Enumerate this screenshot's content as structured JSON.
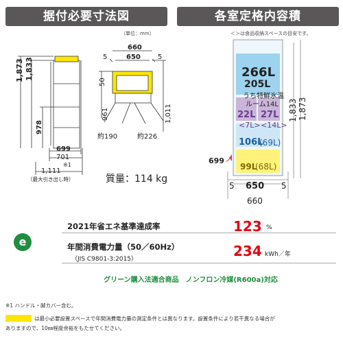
{
  "headers": {
    "left": "据付必要寸法図",
    "right": "各室定格内容積"
  },
  "units_note": "（単位：mm）",
  "food_note": "＜＞は食品収納スペースの目安です。",
  "side_view": {
    "height_total": "1,873",
    "height_body": "1,833",
    "height_978": "978",
    "depth_699": "699",
    "depth_701": "701",
    "handle_mark": "※1",
    "depth_open": "1,111",
    "depth_open_note": "（最大引き出し時）"
  },
  "top_view": {
    "width_total": "660",
    "width_inner": "650",
    "side_gap_left": "5",
    "side_gap_right": "5",
    "rear_gap": "50",
    "depth_961": "961",
    "depth_1011": "1,011",
    "door_left": "約190",
    "door_right": "約226"
  },
  "weight": "質量：114 kg",
  "compartments": {
    "fridge": "266L",
    "special": "205L",
    "room_line1": "うち特鮮氷温",
    "room_line2": "ルーム14L",
    "ice_a": "22L",
    "ice_a_food": "<7L>",
    "ice_b": "27L",
    "ice_b_food": "<14L>",
    "freezer": "106L",
    "freezer_food": "(69L)",
    "veg": "99L",
    "veg_food": "(68L)",
    "depth": "699",
    "height_1833": "1,833",
    "height_1873": "1,873",
    "width_inner": "650",
    "width_total": "660",
    "gap_left": "5",
    "gap_right": "5"
  },
  "energy": {
    "standard_label": "2021年省エネ基準達成率",
    "standard_value": "123",
    "standard_unit": "%",
    "power_label": "年間消費電力量（50／60Hz）",
    "power_sub": "（JIS C9801-3:2015）",
    "power_value": "234",
    "power_unit": "kWh／年",
    "eco_mark": "e"
  },
  "green_line": "グリーン購入法適合商品　ノンフロン冷媒(R600a)対応",
  "notes": {
    "n1": "※1 ハンドル・脚カバー含む。",
    "n2": "は最小必要設置スペースで年間消費電力量の測定条件とは異なります。設置条件により若干異なる場合が",
    "n3": "ありますので、10㎜程度余裕をもたせてください。"
  },
  "colors": {
    "header_bg": "#595757",
    "highlight": "#ffe600",
    "accent_red": "#e60012",
    "green": "#1e8e3e",
    "fridge_blue": "#9dd3ee",
    "ice_purple": "#c9b5da",
    "veg_yellow": "#fff27a",
    "freezer_blue": "#cfe6f6"
  }
}
